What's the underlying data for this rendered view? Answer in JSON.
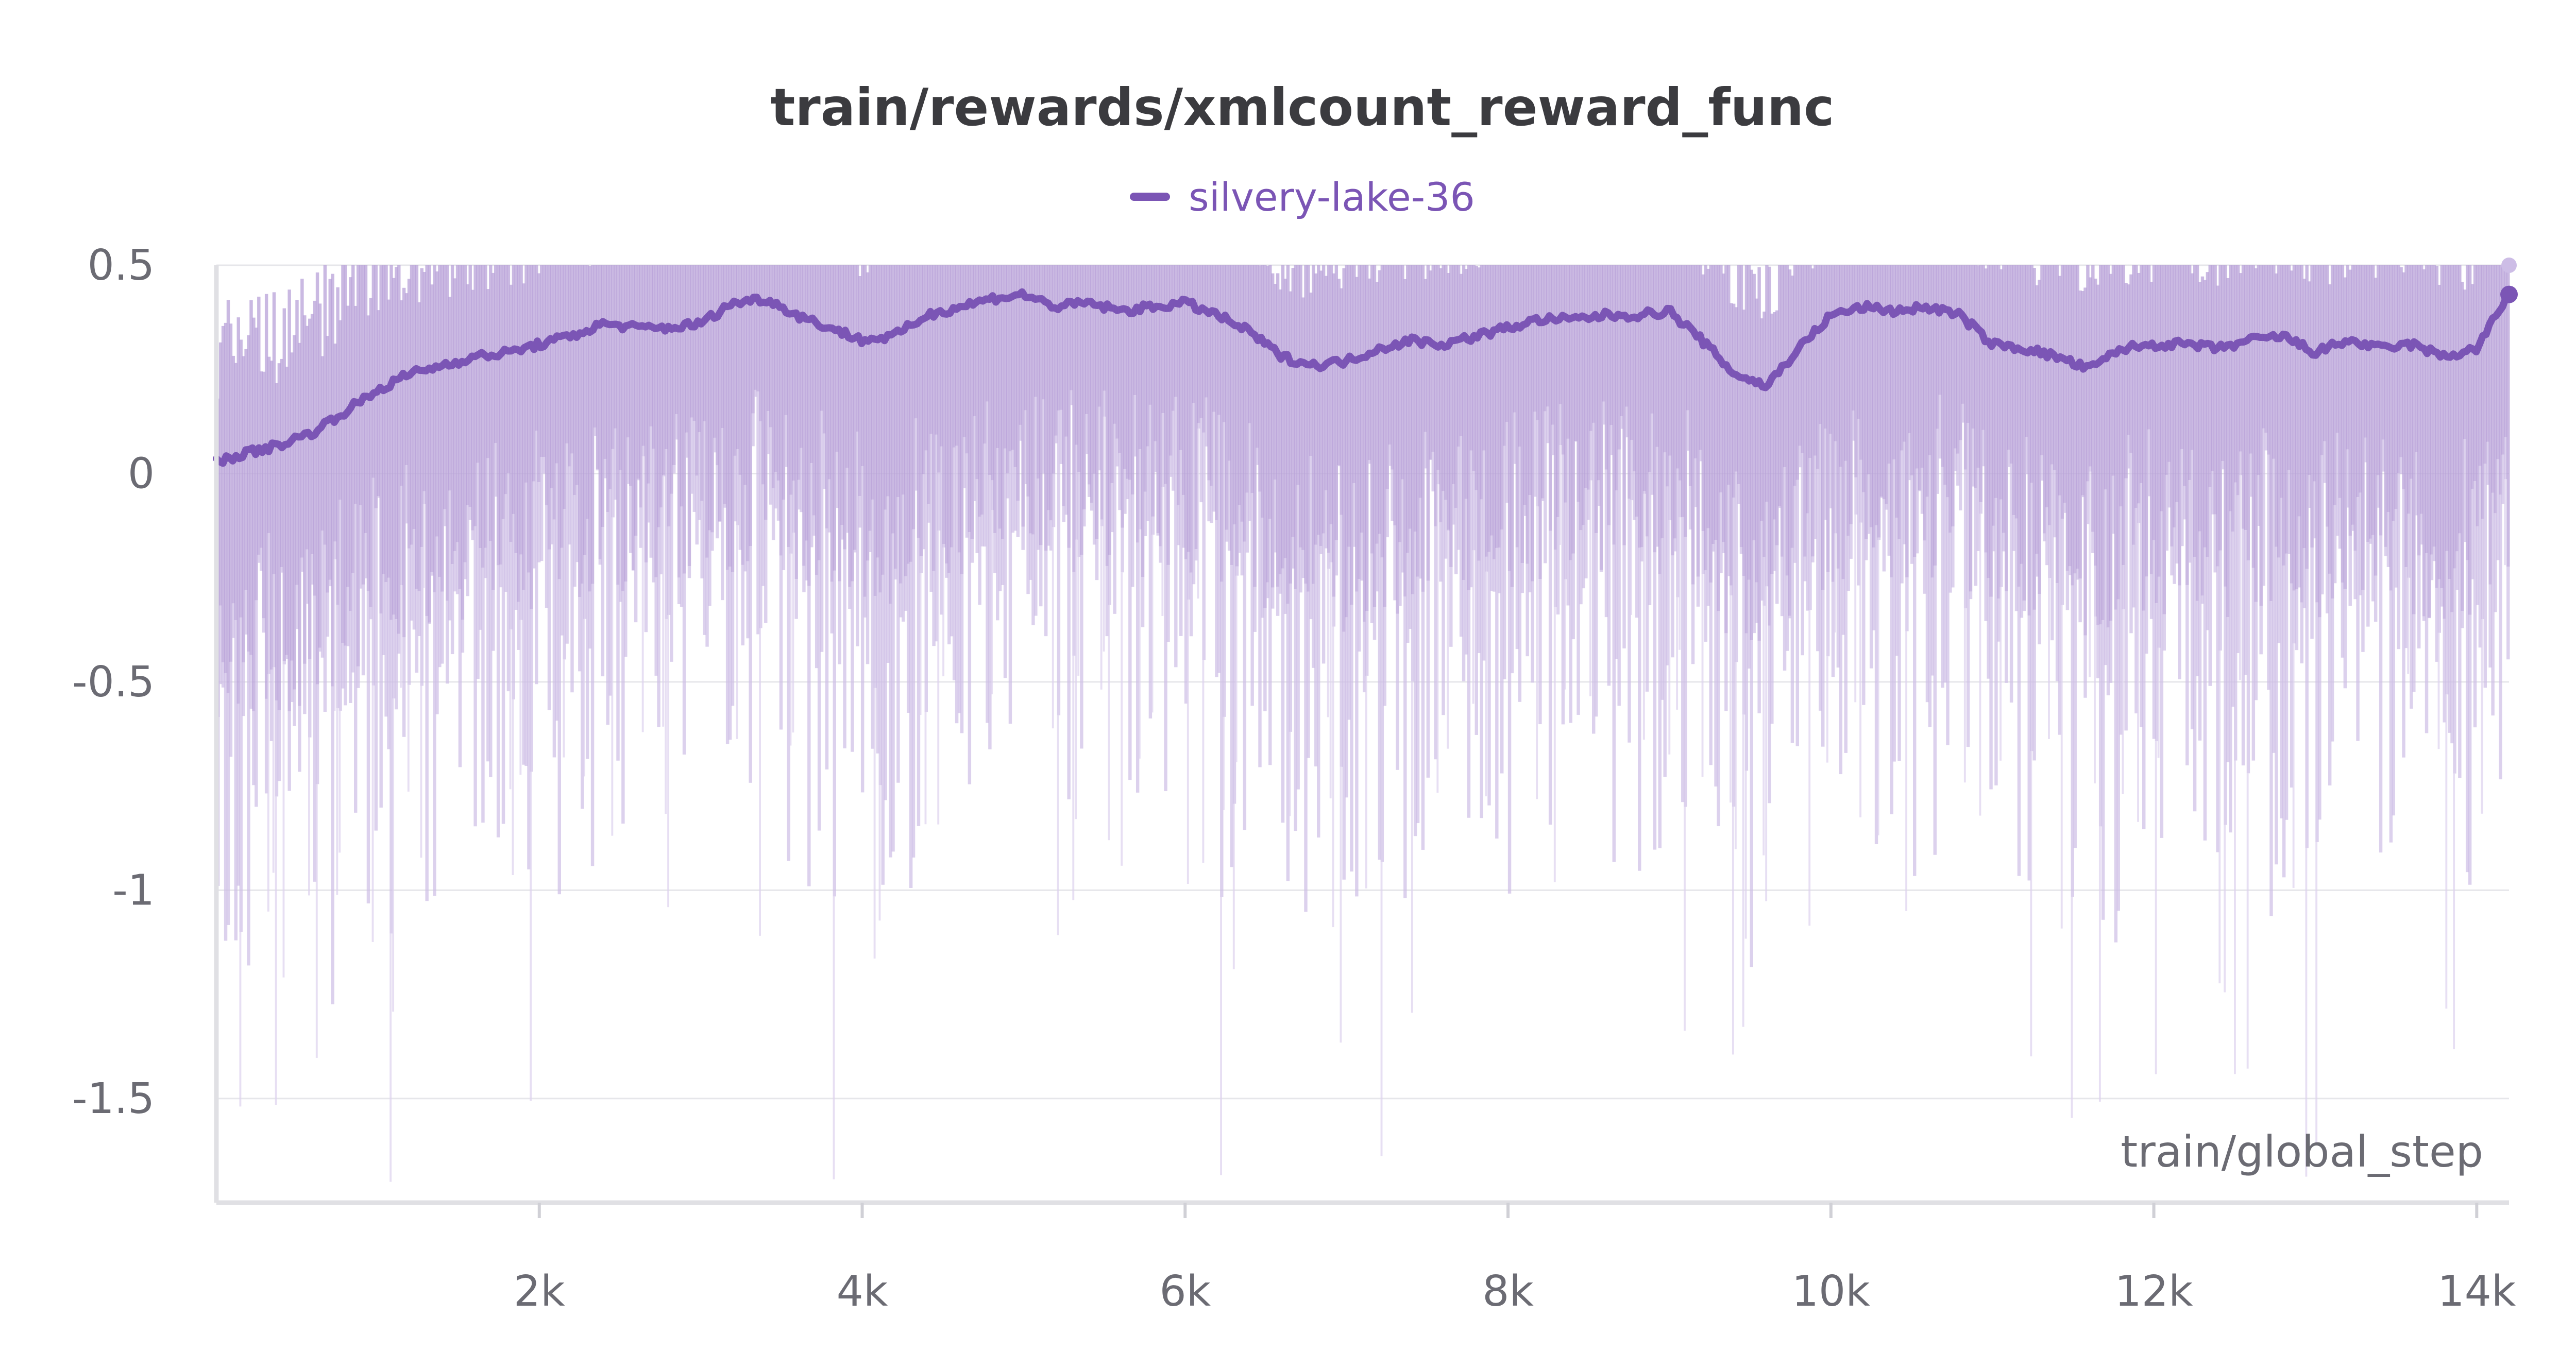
{
  "chart_data": {
    "type": "line",
    "title": "train/rewards/xmlcount_reward_func",
    "xlabel": "train/global_step",
    "ylabel": "",
    "xlim": [
      0,
      14200
    ],
    "ylim": [
      -1.75,
      0.5
    ],
    "x_ticks": [
      2000,
      4000,
      6000,
      8000,
      10000,
      12000,
      14000
    ],
    "x_tick_labels": [
      "2k",
      "4k",
      "6k",
      "8k",
      "10k",
      "12k",
      "14k"
    ],
    "y_ticks": [
      0.5,
      0,
      -0.5,
      -1,
      -1.5
    ],
    "y_tick_labels": [
      "0.5",
      "0",
      "-0.5",
      "-1",
      "-1.5"
    ],
    "grid": true,
    "legend_position": "top-center",
    "series": [
      {
        "name": "silvery-lake-36",
        "color": "#7b55b5",
        "smoothed": {
          "x": [
            0,
            200,
            400,
            600,
            800,
            1000,
            1200,
            1400,
            1600,
            1800,
            2000,
            2200,
            2400,
            2600,
            2800,
            3000,
            3200,
            3400,
            3600,
            3800,
            4000,
            4200,
            4400,
            4600,
            4800,
            5000,
            5200,
            5400,
            5600,
            5800,
            6000,
            6200,
            6400,
            6600,
            6800,
            7000,
            7200,
            7400,
            7600,
            7800,
            8000,
            8200,
            8400,
            8600,
            8800,
            9000,
            9200,
            9400,
            9600,
            9800,
            10000,
            10200,
            10400,
            10600,
            10800,
            11000,
            11200,
            11400,
            11600,
            11800,
            12000,
            12200,
            12400,
            12600,
            12800,
            13000,
            13200,
            13400,
            13600,
            13800,
            14000,
            14200
          ],
          "y": [
            0.03,
            0.05,
            0.07,
            0.1,
            0.15,
            0.2,
            0.24,
            0.26,
            0.28,
            0.29,
            0.31,
            0.33,
            0.36,
            0.35,
            0.35,
            0.36,
            0.41,
            0.42,
            0.38,
            0.35,
            0.32,
            0.33,
            0.38,
            0.4,
            0.42,
            0.43,
            0.4,
            0.41,
            0.39,
            0.4,
            0.41,
            0.38,
            0.34,
            0.28,
            0.26,
            0.27,
            0.3,
            0.32,
            0.31,
            0.33,
            0.35,
            0.37,
            0.37,
            0.38,
            0.38,
            0.39,
            0.32,
            0.24,
            0.21,
            0.3,
            0.38,
            0.4,
            0.39,
            0.4,
            0.38,
            0.31,
            0.3,
            0.28,
            0.25,
            0.3,
            0.31,
            0.31,
            0.3,
            0.32,
            0.33,
            0.29,
            0.32,
            0.3,
            0.31,
            0.28,
            0.3,
            0.43
          ]
        }
      }
    ]
  }
}
